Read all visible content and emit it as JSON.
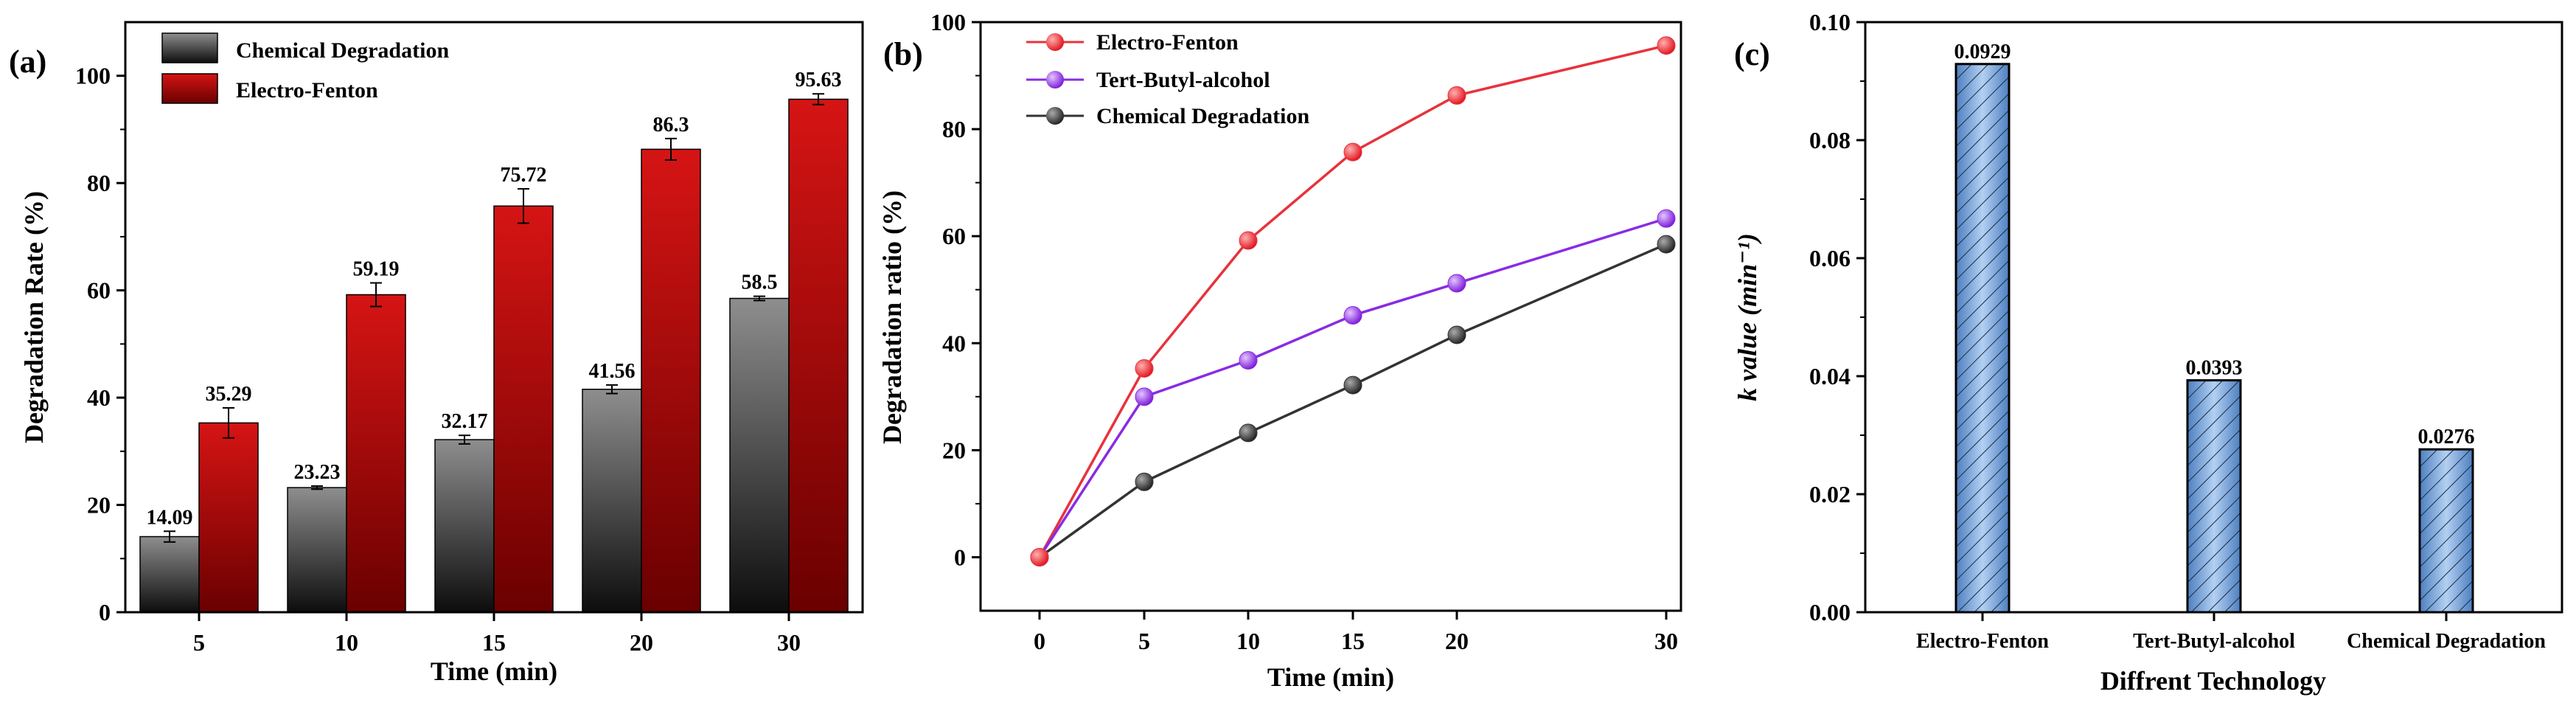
{
  "chart_data": [
    {
      "type": "bar",
      "panel_label": "(a)",
      "categories": [
        "5",
        "10",
        "15",
        "20",
        "30"
      ],
      "xlabel": "Time (min)",
      "ylabel": "Degradation Rate (%)",
      "ylim": [
        0,
        110
      ],
      "yticks": [
        0,
        20,
        40,
        60,
        80,
        100
      ],
      "legend_position": "top-left",
      "series": [
        {
          "name": "Chemical Degradation",
          "values": [
            14.09,
            23.23,
            32.17,
            41.56,
            58.5
          ],
          "errors": [
            1.0,
            0.3,
            0.8,
            0.8,
            0.4
          ],
          "labels": [
            "14.09",
            "23.23",
            "32.17",
            "41.56",
            "58.5"
          ],
          "color": "#6e6e6e"
        },
        {
          "name": "Electro-Fenton",
          "values": [
            35.29,
            59.19,
            75.72,
            86.3,
            95.63
          ],
          "errors": [
            2.8,
            2.2,
            3.2,
            2.0,
            1.0
          ],
          "labels": [
            "35.29",
            "59.19",
            "75.72",
            "86.3",
            "95.63"
          ],
          "color": "#c40a0a"
        }
      ]
    },
    {
      "type": "line",
      "panel_label": "(b)",
      "x": [
        0,
        5,
        10,
        15,
        20,
        30
      ],
      "xticks": [
        "0",
        "5",
        "10",
        "15",
        "20",
        "30"
      ],
      "xlabel": "Time  (min)",
      "ylabel": "Degradation  ratio (%)",
      "ylim": [
        -10,
        100
      ],
      "yticks": [
        0,
        20,
        40,
        60,
        80,
        100
      ],
      "legend_position": "top-left",
      "series": [
        {
          "name": "Electro-Fenton",
          "values": [
            0,
            35.29,
            59.19,
            75.72,
            86.3,
            95.63
          ],
          "color": "#e8323c"
        },
        {
          "name": "Tert-Butyl-alcohol",
          "values": [
            0,
            30.0,
            36.8,
            45.2,
            51.2,
            63.3
          ],
          "color": "#8a2be2"
        },
        {
          "name": "Chemical Degradation",
          "values": [
            0,
            14.09,
            23.23,
            32.17,
            41.56,
            58.5
          ],
          "color": "#333333"
        }
      ]
    },
    {
      "type": "bar",
      "panel_label": "(c)",
      "categories": [
        "Electro-Fenton",
        "Tert-Butyl-alcohol",
        "Chemical Degradation"
      ],
      "values": [
        0.0929,
        0.0393,
        0.0276
      ],
      "labels": [
        "0.0929",
        "0.0393",
        "0.0276"
      ],
      "xlabel": "Diffrent Technology",
      "ylabel": "k value (min⁻¹)",
      "ylim": [
        0,
        0.1
      ],
      "yticks": [
        "0.00",
        "0.02",
        "0.04",
        "0.06",
        "0.08",
        "0.10"
      ],
      "color": "#7aa7dc"
    }
  ]
}
